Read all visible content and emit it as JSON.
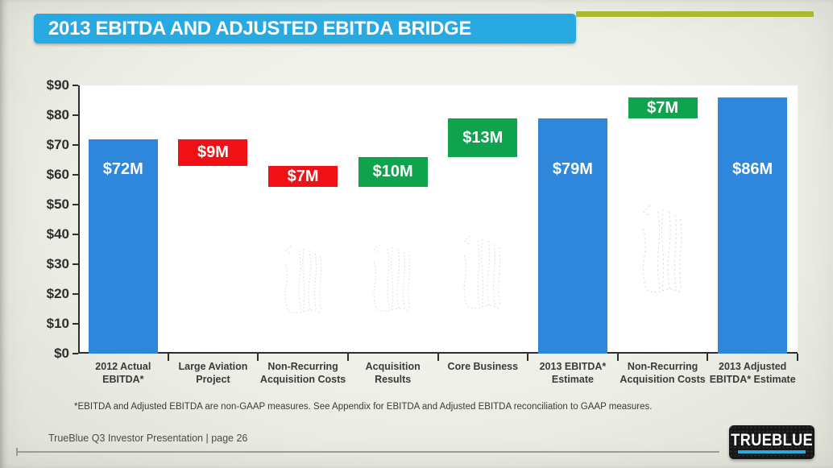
{
  "header": {
    "title": "2013 EBITDA AND ADJUSTED EBITDA BRIDGE"
  },
  "colors": {
    "banner_blue": "#29a9e1",
    "accent_olive": "#abb832",
    "bar_blue": "#2f87db",
    "bar_red": "#f01116",
    "bar_green": "#0fa34d",
    "logo_cyan": "#29abe2",
    "axis_dark": "#2e2e2e"
  },
  "chart_data": {
    "type": "bar",
    "subtype": "waterfall",
    "title": "2013 EBITDA AND ADJUSTED EBITDA BRIDGE",
    "xlabel": "",
    "ylabel": "",
    "ylim": [
      0,
      90
    ],
    "ytick_step": 10,
    "ytick_labels": [
      "$0",
      "$10",
      "$20",
      "$30",
      "$40",
      "$50",
      "$60",
      "$70",
      "$80",
      "$90"
    ],
    "grid": false,
    "legend": false,
    "categories": [
      "2012 Actual EBITDA*",
      "Large Aviation Project",
      "Non-Recurring Acquisition Costs",
      "Acquisition Results",
      "Core Business",
      "2013 EBITDA* Estimate",
      "Non-Recurring Acquisition Costs",
      "2013 Adjusted EBITDA* Estimate"
    ],
    "bars": [
      {
        "category": "2012 Actual EBITDA*",
        "label": "$72M",
        "value": 72,
        "start": 0,
        "end": 72,
        "color": "blue",
        "label_center_value": 62
      },
      {
        "category": "Large Aviation Project",
        "label": "$9M",
        "value": -9,
        "start": 72,
        "end": 63,
        "color": "red",
        "label_center_value": null
      },
      {
        "category": "Non-Recurring Acquisition Costs",
        "label": "$7M",
        "value": -7,
        "start": 63,
        "end": 56,
        "color": "red",
        "label_center_value": null
      },
      {
        "category": "Acquisition Results",
        "label": "$10M",
        "value": 10,
        "start": 56,
        "end": 66,
        "color": "green",
        "label_center_value": null
      },
      {
        "category": "Core Business",
        "label": "$13M",
        "value": 13,
        "start": 66,
        "end": 79,
        "color": "green",
        "label_center_value": null
      },
      {
        "category": "2013 EBITDA* Estimate",
        "label": "$79M",
        "value": 79,
        "start": 0,
        "end": 79,
        "color": "blue",
        "label_center_value": 62
      },
      {
        "category": "Non-Recurring Acquisition Costs",
        "label": "$7M",
        "value": 7,
        "start": 79,
        "end": 86,
        "color": "green",
        "label_center_value": null
      },
      {
        "category": "2013 Adjusted EBITDA* Estimate",
        "label": "$86M",
        "value": 86,
        "start": 0,
        "end": 86,
        "color": "blue",
        "label_center_value": 62
      }
    ]
  },
  "footnote": "*EBITDA and Adjusted EBITDA are non-GAAP measures. See Appendix for EBITDA and Adjusted EBITDA reconciliation to GAAP measures.",
  "footer": {
    "text": "TrueBlue Q3 Investor Presentation | page 26",
    "logo_text": "TRUEBLUE"
  }
}
